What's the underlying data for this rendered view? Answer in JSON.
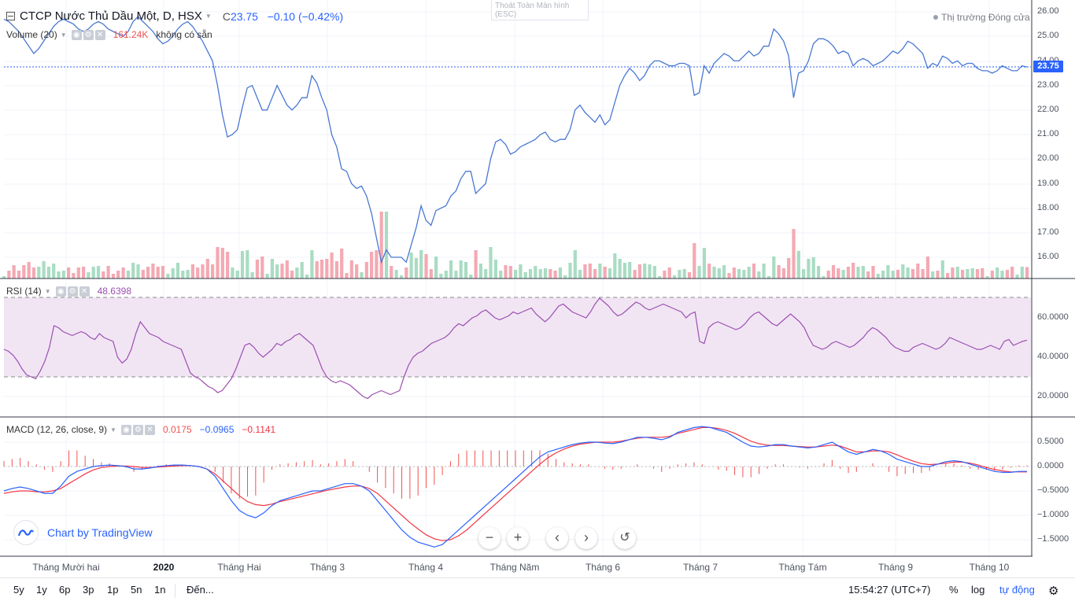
{
  "header": {
    "symbol_title": "CTCP Nước Thủ Dầu Một, D, HSX",
    "close_label": "C",
    "close_value": "23.75",
    "change": "−0.10 (−0.42%)",
    "market_status": "Thị trường Đóng cửa",
    "fullscreen_tip_line1": "Thoát Toàn Màn hình",
    "fullscreen_tip_line2": "(ESC)"
  },
  "volume_legend": {
    "name": "Volume (20)",
    "value": "161.24K",
    "extra": "không có sẵn"
  },
  "rsi_legend": {
    "name": "RSI (14)",
    "value": "48.6398"
  },
  "macd_legend": {
    "name": "MACD (12, 26, close, 9)",
    "hist": "0.0175",
    "macd": "−0.0965",
    "signal": "−0.1141"
  },
  "price_axis": [
    "26.00",
    "25.00",
    "24.00",
    "23.00",
    "22.00",
    "21.00",
    "20.00",
    "19.00",
    "18.00",
    "17.00",
    "16.00"
  ],
  "last_price_tag": "23.75",
  "rsi_axis": [
    "60.0000",
    "40.0000",
    "20.0000"
  ],
  "macd_axis": [
    "0.5000",
    "0.0000",
    "−0.5000",
    "−1.0000",
    "−1.5000"
  ],
  "time_axis": [
    {
      "label": "Tháng Mười hai",
      "bold": false
    },
    {
      "label": "2020",
      "bold": true
    },
    {
      "label": "Tháng Hai",
      "bold": false
    },
    {
      "label": "Tháng 3",
      "bold": false
    },
    {
      "label": "Tháng 4",
      "bold": false
    },
    {
      "label": "Tháng Năm",
      "bold": false
    },
    {
      "label": "Tháng 6",
      "bold": false
    },
    {
      "label": "Tháng 7",
      "bold": false
    },
    {
      "label": "Tháng Tám",
      "bold": false
    },
    {
      "label": "Tháng 9",
      "bold": false
    },
    {
      "label": "Tháng 10",
      "bold": false
    }
  ],
  "range_buttons": [
    "5y",
    "1y",
    "6p",
    "3p",
    "1p",
    "5n",
    "1n"
  ],
  "goto_label": "Đến...",
  "clock": "15:54:27 (UTC+7)",
  "scale_controls": {
    "percent": "%",
    "log": "log",
    "auto": "tự động"
  },
  "branding": "Chart by TradingView",
  "colors": {
    "price_line": "#4a78d2",
    "vol_up": "#a9dcc3",
    "vol_down": "#f4a9b3",
    "rsi_line": "#9c4fb0",
    "rsi_band": "#f3e5f5",
    "macd_line": "#2962ff",
    "signal_line": "#f23645",
    "hist": "#ef5350",
    "accent": "#2962ff"
  },
  "chart_data": {
    "type": "line",
    "title": "CTCP Nước Thủ Dầu Một, D, HSX",
    "ylim": [
      15.5,
      26.2
    ],
    "price": [
      25.7,
      25.6,
      25.4,
      25.2,
      24.9,
      24.6,
      24.3,
      24.5,
      24.8,
      25.1,
      25.4,
      25.6,
      25.7,
      25.6,
      25.5,
      25.3,
      25.2,
      25.3,
      25.5,
      25.6,
      25.5,
      25.3,
      25.2,
      25.1,
      25.0,
      25.2,
      25.6,
      25.8,
      25.6,
      25.4,
      25.2,
      24.9,
      24.7,
      24.8,
      25.0,
      25.3,
      25.5,
      25.6,
      25.4,
      25.1,
      24.8,
      24.4,
      24.0,
      23.0,
      21.8,
      20.9,
      21.0,
      21.2,
      22.1,
      22.9,
      23.0,
      22.5,
      22.0,
      22.0,
      22.5,
      23.0,
      22.6,
      22.2,
      22.0,
      22.2,
      22.5,
      22.5,
      23.4,
      23.1,
      22.5,
      22.0,
      21.0,
      20.5,
      19.6,
      19.5,
      19.0,
      18.8,
      18.9,
      18.5,
      17.8,
      16.8,
      15.8,
      16.3,
      16.0,
      16.0,
      16.0,
      15.8,
      16.5,
      17.2,
      18.1,
      17.5,
      17.3,
      17.9,
      18.0,
      18.1,
      18.5,
      18.7,
      19.2,
      19.5,
      19.5,
      18.6,
      18.8,
      19.0,
      20.0,
      20.7,
      20.8,
      20.6,
      20.2,
      20.3,
      20.5,
      20.6,
      20.7,
      20.8,
      21.0,
      21.1,
      20.8,
      20.7,
      20.8,
      20.8,
      21.2,
      22.0,
      22.2,
      21.9,
      21.7,
      21.5,
      21.8,
      21.4,
      21.6,
      22.3,
      23.0,
      23.4,
      23.7,
      23.5,
      23.2,
      23.4,
      23.8,
      24.0,
      24.0,
      23.9,
      23.8,
      23.8,
      23.9,
      23.9,
      23.8,
      22.6,
      22.7,
      23.8,
      23.5,
      23.9,
      24.1,
      24.3,
      24.2,
      24.0,
      24.0,
      24.2,
      24.4,
      24.2,
      24.3,
      24.6,
      24.6,
      25.3,
      25.1,
      24.8,
      24.2,
      22.5,
      23.5,
      23.6,
      24.0,
      24.7,
      24.9,
      24.9,
      24.8,
      24.6,
      24.3,
      24.4,
      24.3,
      23.8,
      24.0,
      24.1,
      24.0,
      23.8,
      23.9,
      24.0,
      24.2,
      24.4,
      24.3,
      24.5,
      24.8,
      24.7,
      24.5,
      24.3,
      23.7,
      23.9,
      23.8,
      24.2,
      24.1,
      23.9,
      24.0,
      23.8,
      23.9,
      23.9,
      23.7,
      23.6,
      23.6,
      23.5,
      23.6,
      23.8,
      23.7,
      23.6,
      23.6,
      23.8,
      23.75
    ],
    "rsi": [
      44,
      43,
      41,
      38,
      34,
      31,
      30,
      29,
      33,
      38,
      45,
      56,
      55,
      53,
      52,
      51,
      52,
      53,
      52,
      50,
      49,
      52,
      50,
      49,
      48,
      40,
      37,
      39,
      44,
      52,
      58,
      55,
      52,
      51,
      50,
      48,
      47,
      46,
      45,
      44,
      38,
      32,
      30,
      29,
      27,
      25,
      24,
      22,
      23,
      26,
      29,
      34,
      40,
      46,
      47,
      45,
      42,
      40,
      42,
      44,
      47,
      46,
      48,
      49,
      51,
      52,
      50,
      48,
      46,
      40,
      34,
      30,
      28,
      27,
      28,
      27,
      26,
      24,
      22,
      20,
      19,
      21,
      22,
      23,
      22,
      21,
      22,
      23,
      30,
      36,
      40,
      42,
      43,
      45,
      47,
      48,
      49,
      50,
      52,
      55,
      57,
      56,
      58,
      60,
      61,
      63,
      64,
      62,
      60,
      59,
      60,
      61,
      63,
      62,
      63,
      64,
      65,
      62,
      60,
      58,
      60,
      63,
      66,
      67,
      65,
      63,
      62,
      61,
      60,
      63,
      67,
      70,
      68,
      66,
      63,
      61,
      62,
      64,
      66,
      68,
      67,
      65,
      64,
      65,
      66,
      67,
      66,
      65,
      64,
      63,
      60,
      62,
      63,
      48,
      47,
      55,
      57,
      58,
      57,
      56,
      55,
      54,
      55,
      57,
      60,
      62,
      63,
      61,
      59,
      57,
      56,
      58,
      60,
      62,
      60,
      58,
      55,
      50,
      46,
      45,
      44,
      45,
      47,
      48,
      47,
      46,
      45,
      46,
      48,
      50,
      53,
      55,
      54,
      52,
      50,
      47,
      45,
      44,
      43,
      43,
      45,
      46,
      47,
      46,
      45,
      44,
      45,
      47,
      50,
      49,
      48,
      47,
      46,
      45,
      44,
      44,
      45,
      46,
      45,
      44,
      48,
      49,
      46,
      47,
      48,
      48.64
    ],
    "macd": [
      -0.5,
      -0.45,
      -0.42,
      -0.45,
      -0.5,
      -0.55,
      -0.55,
      -0.4,
      -0.2,
      -0.1,
      -0.05,
      0.0,
      0.02,
      0.03,
      0.02,
      0.0,
      -0.05,
      -0.05,
      -0.03,
      0.0,
      0.02,
      0.03,
      0.03,
      0.02,
      0.0,
      -0.05,
      -0.2,
      -0.45,
      -0.7,
      -0.9,
      -1.0,
      -1.05,
      -0.95,
      -0.8,
      -0.7,
      -0.65,
      -0.6,
      -0.55,
      -0.5,
      -0.5,
      -0.45,
      -0.4,
      -0.35,
      -0.35,
      -0.4,
      -0.5,
      -0.7,
      -0.9,
      -1.1,
      -1.3,
      -1.45,
      -1.55,
      -1.6,
      -1.65,
      -1.6,
      -1.45,
      -1.3,
      -1.15,
      -1.0,
      -0.85,
      -0.7,
      -0.55,
      -0.4,
      -0.25,
      -0.1,
      0.05,
      0.2,
      0.3,
      0.35,
      0.4,
      0.45,
      0.48,
      0.5,
      0.5,
      0.48,
      0.47,
      0.5,
      0.55,
      0.6,
      0.6,
      0.58,
      0.55,
      0.6,
      0.7,
      0.75,
      0.8,
      0.82,
      0.8,
      0.75,
      0.7,
      0.6,
      0.5,
      0.42,
      0.4,
      0.42,
      0.45,
      0.45,
      0.42,
      0.4,
      0.38,
      0.4,
      0.45,
      0.5,
      0.4,
      0.3,
      0.25,
      0.3,
      0.35,
      0.32,
      0.25,
      0.15,
      0.1,
      0.05,
      0.0,
      0.0,
      0.05,
      0.1,
      0.12,
      0.1,
      0.05,
      0.0,
      -0.05,
      -0.1,
      -0.12,
      -0.12,
      -0.1,
      -0.1
    ],
    "signal": [
      -0.55,
      -0.52,
      -0.5,
      -0.5,
      -0.52,
      -0.52,
      -0.5,
      -0.45,
      -0.35,
      -0.25,
      -0.15,
      -0.07,
      -0.02,
      0.0,
      0.01,
      0.01,
      0.0,
      -0.02,
      -0.02,
      -0.01,
      0.0,
      0.01,
      0.02,
      0.02,
      0.0,
      -0.05,
      -0.15,
      -0.3,
      -0.45,
      -0.6,
      -0.72,
      -0.78,
      -0.8,
      -0.77,
      -0.72,
      -0.68,
      -0.64,
      -0.6,
      -0.56,
      -0.52,
      -0.48,
      -0.45,
      -0.42,
      -0.4,
      -0.4,
      -0.45,
      -0.55,
      -0.7,
      -0.85,
      -1.0,
      -1.15,
      -1.28,
      -1.4,
      -1.48,
      -1.52,
      -1.5,
      -1.42,
      -1.3,
      -1.15,
      -1.0,
      -0.85,
      -0.7,
      -0.55,
      -0.4,
      -0.25,
      -0.1,
      0.05,
      0.18,
      0.28,
      0.36,
      0.42,
      0.46,
      0.48,
      0.5,
      0.5,
      0.5,
      0.52,
      0.55,
      0.58,
      0.6,
      0.6,
      0.6,
      0.62,
      0.68,
      0.72,
      0.76,
      0.8,
      0.8,
      0.78,
      0.74,
      0.68,
      0.6,
      0.52,
      0.47,
      0.44,
      0.43,
      0.43,
      0.42,
      0.41,
      0.4,
      0.4,
      0.42,
      0.44,
      0.42,
      0.36,
      0.3,
      0.3,
      0.32,
      0.32,
      0.3,
      0.24,
      0.17,
      0.11,
      0.06,
      0.04,
      0.05,
      0.07,
      0.09,
      0.09,
      0.07,
      0.03,
      -0.02,
      -0.06,
      -0.09,
      -0.11,
      -0.11,
      -0.11
    ]
  }
}
